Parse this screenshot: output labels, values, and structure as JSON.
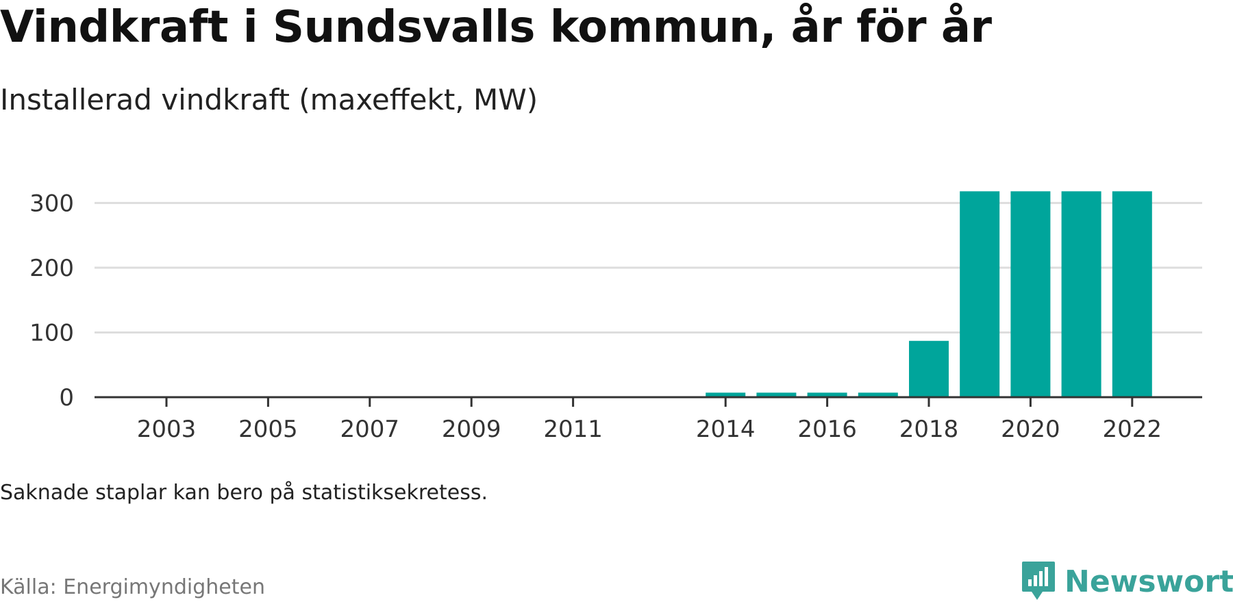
{
  "title": "Vindkraft i Sundsvalls kommun, år för år",
  "subtitle": "Installerad vindkraft (maxeffekt, MW)",
  "note": "Saknade staplar kan bero på statistiksekretess.",
  "source": "Källa: Energimyndigheten",
  "brand": {
    "name": "Newsworthy",
    "icon": "newsworthy-logo-icon"
  },
  "colors": {
    "bar": "#00A59B",
    "grid": "#dddddd",
    "axis": "#333333",
    "brand": "#3AA39A",
    "text": "#111111",
    "muted": "#777777"
  },
  "chart_data": {
    "type": "bar",
    "categories": [
      2003,
      2004,
      2005,
      2006,
      2007,
      2008,
      2009,
      2010,
      2011,
      2014,
      2015,
      2016,
      2017,
      2018,
      2019,
      2020,
      2021,
      2022
    ],
    "values": [
      0,
      0,
      0,
      0,
      0,
      0,
      0,
      0,
      0,
      7,
      7,
      7,
      7,
      87,
      318,
      318,
      318,
      318
    ],
    "x_tick_labels": [
      "2003",
      "2005",
      "2007",
      "2009",
      "2011",
      "2014",
      "2016",
      "2018",
      "2020",
      "2022"
    ],
    "y_ticks": [
      0,
      100,
      200,
      300
    ],
    "ylim": [
      0,
      330
    ],
    "xlabel": "",
    "ylabel": "",
    "grid": true
  }
}
